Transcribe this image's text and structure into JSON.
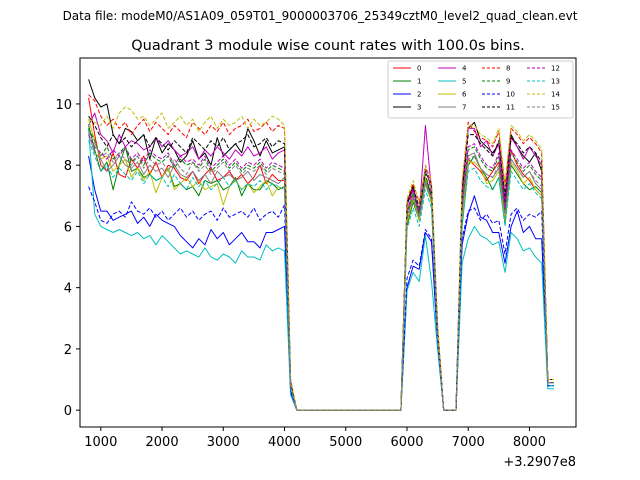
{
  "figure_header": "Data file: modeM0/AS1A09_059T01_9000003706_25349cztM0_level2_quad_clean.evt",
  "chart_data": {
    "type": "line",
    "title": "Quadrant 3 module wise count rates with 100.0s bins.",
    "xlabel": "",
    "ylabel": "",
    "x_offset_label": "+3.2907e8",
    "xlim": [
      660,
      8760
    ],
    "ylim": [
      -0.55,
      11.5
    ],
    "xticks": [
      1000,
      2000,
      3000,
      4000,
      5000,
      6000,
      7000,
      8000
    ],
    "yticks": [
      0,
      2,
      4,
      6,
      8,
      10
    ],
    "legend_position": "top-right",
    "legend_ncol": 4,
    "x": [
      800,
      900,
      1000,
      1100,
      1200,
      1300,
      1400,
      1500,
      1600,
      1700,
      1800,
      1900,
      2000,
      2100,
      2200,
      2300,
      2400,
      2500,
      2600,
      2700,
      2800,
      2900,
      3000,
      3100,
      3200,
      3300,
      3400,
      3500,
      3600,
      3700,
      3800,
      3900,
      4000,
      4100,
      4200,
      4300,
      4400,
      5900,
      6000,
      6100,
      6200,
      6300,
      6400,
      6500,
      6600,
      6700,
      6800,
      6900,
      7000,
      7100,
      7200,
      7300,
      7400,
      7500,
      7600,
      7700,
      7800,
      7900,
      8000,
      8100,
      8200,
      8300,
      8400
    ],
    "series": [
      {
        "name": "0",
        "color": "#ff0000",
        "dash": "solid",
        "values": [
          10.2,
          9.0,
          8.0,
          7.8,
          8.4,
          7.7,
          7.6,
          8.2,
          7.9,
          8.3,
          7.7,
          8.1,
          7.6,
          8.0,
          7.9,
          7.6,
          7.5,
          7.8,
          7.4,
          7.7,
          7.9,
          7.5,
          7.6,
          7.8,
          7.5,
          7.7,
          7.4,
          7.6,
          8.0,
          7.4,
          7.7,
          7.5,
          7.5,
          0.7,
          0.0,
          0.0,
          0.0,
          0.0,
          6.5,
          7.0,
          6.2,
          7.5,
          7.0,
          2.5,
          0.0,
          0.0,
          0.0,
          6.3,
          8.2,
          8.0,
          7.8,
          7.5,
          7.8,
          8.1,
          6.6,
          8.5,
          8.0,
          7.7,
          7.5,
          7.2,
          7.0,
          1.0,
          1.0
        ]
      },
      {
        "name": "1",
        "color": "#008000",
        "dash": "solid",
        "values": [
          9.3,
          8.5,
          7.8,
          8.1,
          7.2,
          8.0,
          8.6,
          7.8,
          7.9,
          7.6,
          7.7,
          7.5,
          7.6,
          7.9,
          7.3,
          7.4,
          7.2,
          7.3,
          7.0,
          7.5,
          7.4,
          7.5,
          7.2,
          7.3,
          7.6,
          7.0,
          7.4,
          7.2,
          7.2,
          7.5,
          7.4,
          7.2,
          7.3,
          0.8,
          0.0,
          0.0,
          0.0,
          0.0,
          6.0,
          6.8,
          6.2,
          7.4,
          6.8,
          2.2,
          0.0,
          0.0,
          0.0,
          6.0,
          8.0,
          8.3,
          7.9,
          7.6,
          7.2,
          7.6,
          6.1,
          8.0,
          7.7,
          7.4,
          7.2,
          7.3,
          7.1,
          0.9,
          0.9
        ]
      },
      {
        "name": "2",
        "color": "#0000ff",
        "dash": "solid",
        "values": [
          8.3,
          7.2,
          6.5,
          6.5,
          6.2,
          6.3,
          6.4,
          6.5,
          6.1,
          6.3,
          6.0,
          6.4,
          6.2,
          6.1,
          6.0,
          5.7,
          5.5,
          5.3,
          5.6,
          5.4,
          5.9,
          5.6,
          5.8,
          5.4,
          5.6,
          5.8,
          5.5,
          5.5,
          5.3,
          5.8,
          5.8,
          5.9,
          6.0,
          0.6,
          0.0,
          0.0,
          0.0,
          0.0,
          4.0,
          4.7,
          4.6,
          5.8,
          5.5,
          2.2,
          0.0,
          0.0,
          0.0,
          5.4,
          6.4,
          7.0,
          6.3,
          6.2,
          5.8,
          5.8,
          4.8,
          6.0,
          6.5,
          5.8,
          6.0,
          5.6,
          5.6,
          0.8,
          0.8
        ]
      },
      {
        "name": "3",
        "color": "#000000",
        "dash": "solid",
        "values": [
          10.8,
          10.2,
          9.9,
          10.0,
          9.0,
          8.7,
          9.2,
          9.1,
          8.8,
          9.0,
          8.2,
          8.9,
          8.4,
          8.7,
          8.5,
          8.1,
          8.3,
          8.8,
          8.2,
          8.4,
          8.0,
          8.9,
          8.3,
          8.5,
          8.7,
          8.4,
          9.2,
          8.8,
          8.3,
          8.8,
          8.4,
          8.5,
          8.6,
          0.9,
          0.0,
          0.0,
          0.0,
          0.0,
          6.8,
          7.3,
          6.4,
          7.6,
          7.0,
          2.6,
          0.0,
          0.0,
          0.0,
          7.2,
          9.2,
          9.4,
          8.8,
          8.6,
          8.4,
          8.7,
          6.8,
          9.0,
          8.6,
          8.3,
          8.1,
          8.4,
          7.8,
          1.0,
          1.0
        ]
      },
      {
        "name": "4",
        "color": "#bf00bf",
        "dash": "solid",
        "values": [
          9.3,
          9.7,
          9.0,
          8.8,
          8.4,
          9.0,
          8.6,
          8.8,
          8.7,
          8.5,
          8.6,
          8.9,
          8.6,
          8.8,
          8.5,
          8.3,
          8.4,
          8.6,
          8.2,
          8.5,
          8.3,
          8.6,
          8.4,
          8.2,
          8.5,
          8.3,
          8.6,
          8.3,
          8.4,
          8.6,
          8.2,
          8.4,
          8.5,
          0.9,
          0.0,
          0.0,
          0.0,
          0.0,
          6.7,
          7.2,
          6.4,
          9.3,
          7.2,
          2.6,
          0.0,
          0.0,
          0.0,
          7.0,
          9.2,
          9.2,
          8.6,
          8.8,
          8.3,
          8.7,
          6.9,
          8.9,
          8.6,
          8.2,
          8.6,
          8.3,
          8.0,
          1.0,
          1.0
        ]
      },
      {
        "name": "5",
        "color": "#00bfbf",
        "dash": "solid",
        "values": [
          9.2,
          6.4,
          6.0,
          5.9,
          5.8,
          5.9,
          5.8,
          5.7,
          5.8,
          5.6,
          5.7,
          5.4,
          5.7,
          5.5,
          5.3,
          5.1,
          5.2,
          5.1,
          5.0,
          5.3,
          5.0,
          4.9,
          5.1,
          5.0,
          4.8,
          5.2,
          5.0,
          5.0,
          4.9,
          5.4,
          5.2,
          5.3,
          5.2,
          0.5,
          0.0,
          0.0,
          0.0,
          0.0,
          3.9,
          4.5,
          4.2,
          5.7,
          4.2,
          2.0,
          0.0,
          0.0,
          0.0,
          4.8,
          5.6,
          6.0,
          5.7,
          5.6,
          5.4,
          5.5,
          4.5,
          5.8,
          5.6,
          5.2,
          5.3,
          5.0,
          4.8,
          0.7,
          0.7
        ]
      },
      {
        "name": "6",
        "color": "#bfbf00",
        "dash": "solid",
        "values": [
          9.5,
          8.8,
          8.2,
          8.3,
          7.8,
          8.0,
          8.2,
          7.6,
          7.9,
          7.5,
          7.8,
          7.1,
          7.6,
          7.9,
          7.2,
          7.4,
          7.6,
          7.3,
          7.5,
          7.2,
          7.3,
          7.4,
          6.7,
          7.3,
          7.5,
          7.2,
          7.4,
          7.1,
          7.3,
          7.5,
          7.0,
          7.3,
          7.2,
          0.8,
          0.0,
          0.0,
          0.0,
          0.0,
          6.1,
          6.9,
          6.2,
          7.6,
          6.7,
          2.3,
          0.0,
          0.0,
          0.0,
          6.2,
          8.1,
          8.1,
          7.9,
          7.4,
          7.5,
          7.8,
          6.2,
          8.1,
          7.8,
          7.4,
          7.6,
          7.2,
          7.0,
          0.9,
          0.9
        ]
      },
      {
        "name": "7",
        "color": "#808080",
        "dash": "solid",
        "values": [
          9.0,
          8.4,
          8.2,
          7.8,
          8.0,
          8.3,
          8.0,
          7.9,
          8.1,
          7.7,
          8.0,
          7.8,
          7.9,
          7.6,
          8.0,
          7.7,
          7.6,
          7.8,
          7.5,
          7.7,
          7.4,
          7.8,
          7.6,
          7.7,
          7.5,
          7.6,
          7.8,
          7.5,
          7.7,
          7.6,
          7.5,
          7.4,
          7.6,
          0.8,
          0.0,
          0.0,
          0.0,
          0.0,
          6.3,
          7.0,
          6.3,
          7.4,
          6.9,
          2.4,
          0.0,
          0.0,
          0.0,
          6.5,
          8.3,
          8.4,
          7.9,
          7.7,
          7.6,
          7.9,
          6.4,
          8.2,
          7.9,
          7.6,
          7.8,
          7.4,
          7.2,
          0.9,
          0.9
        ]
      },
      {
        "name": "8",
        "color": "#ff0000",
        "dash": "dashed",
        "values": [
          10.3,
          10.1,
          9.6,
          9.3,
          9.5,
          9.2,
          9.4,
          9.0,
          9.3,
          9.5,
          9.1,
          9.4,
          9.2,
          9.0,
          9.3,
          9.1,
          8.9,
          9.4,
          9.2,
          9.0,
          9.3,
          9.1,
          9.4,
          9.0,
          9.2,
          9.3,
          9.5,
          9.1,
          9.2,
          9.4,
          9.1,
          9.3,
          9.2,
          1.0,
          0.0,
          0.0,
          0.0,
          0.0,
          6.8,
          7.4,
          6.8,
          7.9,
          7.4,
          2.8,
          0.0,
          0.0,
          0.0,
          7.4,
          9.4,
          9.1,
          8.9,
          8.8,
          8.6,
          9.1,
          7.3,
          9.2,
          9.0,
          8.7,
          8.9,
          8.7,
          8.4,
          1.0,
          1.0
        ]
      },
      {
        "name": "9",
        "color": "#008000",
        "dash": "dashed",
        "values": [
          9.2,
          8.8,
          8.3,
          8.6,
          8.2,
          8.4,
          8.6,
          8.1,
          8.3,
          8.0,
          8.4,
          8.2,
          8.1,
          8.3,
          7.9,
          8.2,
          8.0,
          8.1,
          7.9,
          8.2,
          7.8,
          8.0,
          8.2,
          7.9,
          8.1,
          7.8,
          8.0,
          7.9,
          8.1,
          7.8,
          8.0,
          7.9,
          7.8,
          0.8,
          0.0,
          0.0,
          0.0,
          0.0,
          6.4,
          7.1,
          6.4,
          7.7,
          7.0,
          2.4,
          0.0,
          0.0,
          0.0,
          6.7,
          8.5,
          8.6,
          8.2,
          7.9,
          7.8,
          8.3,
          6.5,
          8.4,
          8.1,
          7.8,
          8.0,
          7.7,
          7.5,
          0.9,
          0.9
        ]
      },
      {
        "name": "10",
        "color": "#0000ff",
        "dash": "dashed",
        "values": [
          7.3,
          6.8,
          6.2,
          6.1,
          6.4,
          6.5,
          6.3,
          6.8,
          6.5,
          6.4,
          6.6,
          6.3,
          6.5,
          6.2,
          6.4,
          6.6,
          6.3,
          6.5,
          6.2,
          6.4,
          6.5,
          6.2,
          6.6,
          6.3,
          6.4,
          6.5,
          6.3,
          6.6,
          6.2,
          6.4,
          6.5,
          6.3,
          6.7,
          0.6,
          0.0,
          0.0,
          0.0,
          0.0,
          4.3,
          4.9,
          4.7,
          5.9,
          5.6,
          2.2,
          0.0,
          0.0,
          0.0,
          5.6,
          6.5,
          6.6,
          6.2,
          6.4,
          6.1,
          6.2,
          5.1,
          6.4,
          6.6,
          6.2,
          6.4,
          6.3,
          6.5,
          0.8,
          0.8
        ]
      },
      {
        "name": "11",
        "color": "#000000",
        "dash": "dashed",
        "values": [
          9.6,
          9.3,
          8.9,
          8.6,
          9.0,
          8.7,
          8.9,
          8.6,
          8.8,
          9.0,
          8.6,
          8.9,
          8.7,
          8.5,
          8.8,
          8.6,
          8.4,
          8.9,
          8.7,
          8.5,
          8.8,
          8.6,
          8.9,
          8.5,
          8.7,
          8.8,
          9.0,
          8.6,
          8.7,
          8.9,
          8.6,
          8.8,
          8.7,
          0.9,
          0.0,
          0.0,
          0.0,
          0.0,
          6.7,
          7.3,
          6.6,
          7.8,
          7.3,
          2.6,
          0.0,
          0.0,
          0.0,
          7.1,
          9.0,
          9.0,
          8.7,
          8.5,
          8.3,
          8.8,
          7.0,
          8.9,
          8.7,
          8.4,
          8.6,
          8.4,
          8.1,
          1.0,
          1.0
        ]
      },
      {
        "name": "12",
        "color": "#bf00bf",
        "dash": "dashed",
        "values": [
          9.0,
          8.6,
          8.4,
          8.2,
          8.5,
          8.3,
          8.6,
          8.2,
          8.4,
          8.1,
          8.5,
          8.3,
          8.2,
          8.4,
          8.0,
          8.3,
          8.1,
          8.2,
          8.0,
          8.3,
          7.9,
          8.1,
          8.3,
          8.0,
          8.2,
          7.9,
          8.1,
          8.0,
          8.2,
          7.9,
          8.1,
          8.0,
          7.9,
          0.8,
          0.0,
          0.0,
          0.0,
          0.0,
          6.5,
          7.2,
          6.5,
          8.0,
          7.1,
          2.5,
          0.0,
          0.0,
          0.0,
          6.8,
          8.6,
          8.7,
          8.3,
          8.0,
          7.9,
          8.4,
          6.6,
          8.5,
          8.2,
          7.9,
          8.1,
          7.8,
          7.6,
          0.9,
          0.9
        ]
      },
      {
        "name": "13",
        "color": "#00bfbf",
        "dash": "dashed",
        "values": [
          8.8,
          8.3,
          7.8,
          8.0,
          7.6,
          7.9,
          7.7,
          7.5,
          7.8,
          7.4,
          7.7,
          7.5,
          7.6,
          7.3,
          7.7,
          7.4,
          7.2,
          7.6,
          7.3,
          7.5,
          7.2,
          7.4,
          7.6,
          7.3,
          7.5,
          7.2,
          7.4,
          7.3,
          7.5,
          7.2,
          7.4,
          7.3,
          7.2,
          0.7,
          0.0,
          0.0,
          0.0,
          0.0,
          5.9,
          6.6,
          6.0,
          7.2,
          6.6,
          2.3,
          0.0,
          0.0,
          0.0,
          6.0,
          7.8,
          7.9,
          7.5,
          7.3,
          7.2,
          7.6,
          6.0,
          7.8,
          7.5,
          7.2,
          7.4,
          7.1,
          6.9,
          0.8,
          0.8
        ]
      },
      {
        "name": "14",
        "color": "#bfbf00",
        "dash": "dashed",
        "values": [
          9.5,
          9.4,
          9.3,
          9.6,
          9.2,
          9.7,
          9.9,
          9.8,
          9.5,
          9.6,
          9.3,
          9.5,
          9.7,
          9.2,
          9.4,
          9.6,
          9.3,
          9.5,
          9.1,
          9.4,
          9.6,
          9.2,
          9.5,
          9.3,
          9.4,
          9.6,
          9.2,
          9.5,
          9.3,
          9.4,
          9.6,
          9.5,
          9.3,
          1.0,
          0.0,
          0.0,
          0.0,
          0.0,
          6.9,
          7.5,
          6.7,
          8.0,
          7.5,
          2.8,
          0.0,
          0.0,
          0.0,
          7.5,
          9.3,
          9.3,
          9.0,
          8.9,
          8.7,
          9.2,
          7.4,
          9.3,
          9.1,
          8.8,
          9.0,
          8.8,
          8.5,
          1.0,
          1.0
        ]
      },
      {
        "name": "15",
        "color": "#808080",
        "dash": "dashed",
        "values": [
          9.1,
          8.7,
          8.3,
          8.4,
          8.1,
          8.4,
          8.2,
          8.0,
          8.3,
          7.9,
          8.2,
          8.0,
          8.1,
          7.8,
          8.2,
          7.9,
          7.7,
          8.1,
          7.8,
          8.0,
          7.7,
          7.9,
          8.1,
          7.8,
          8.0,
          7.7,
          7.9,
          7.8,
          8.0,
          7.7,
          7.9,
          7.8,
          7.7,
          0.8,
          0.0,
          0.0,
          0.0,
          0.0,
          6.2,
          6.9,
          6.3,
          7.5,
          6.9,
          2.4,
          0.0,
          0.0,
          0.0,
          6.4,
          8.2,
          8.3,
          7.9,
          7.7,
          7.6,
          8.0,
          6.3,
          8.2,
          7.9,
          7.6,
          7.8,
          7.5,
          7.3,
          0.9,
          0.9
        ]
      }
    ]
  }
}
